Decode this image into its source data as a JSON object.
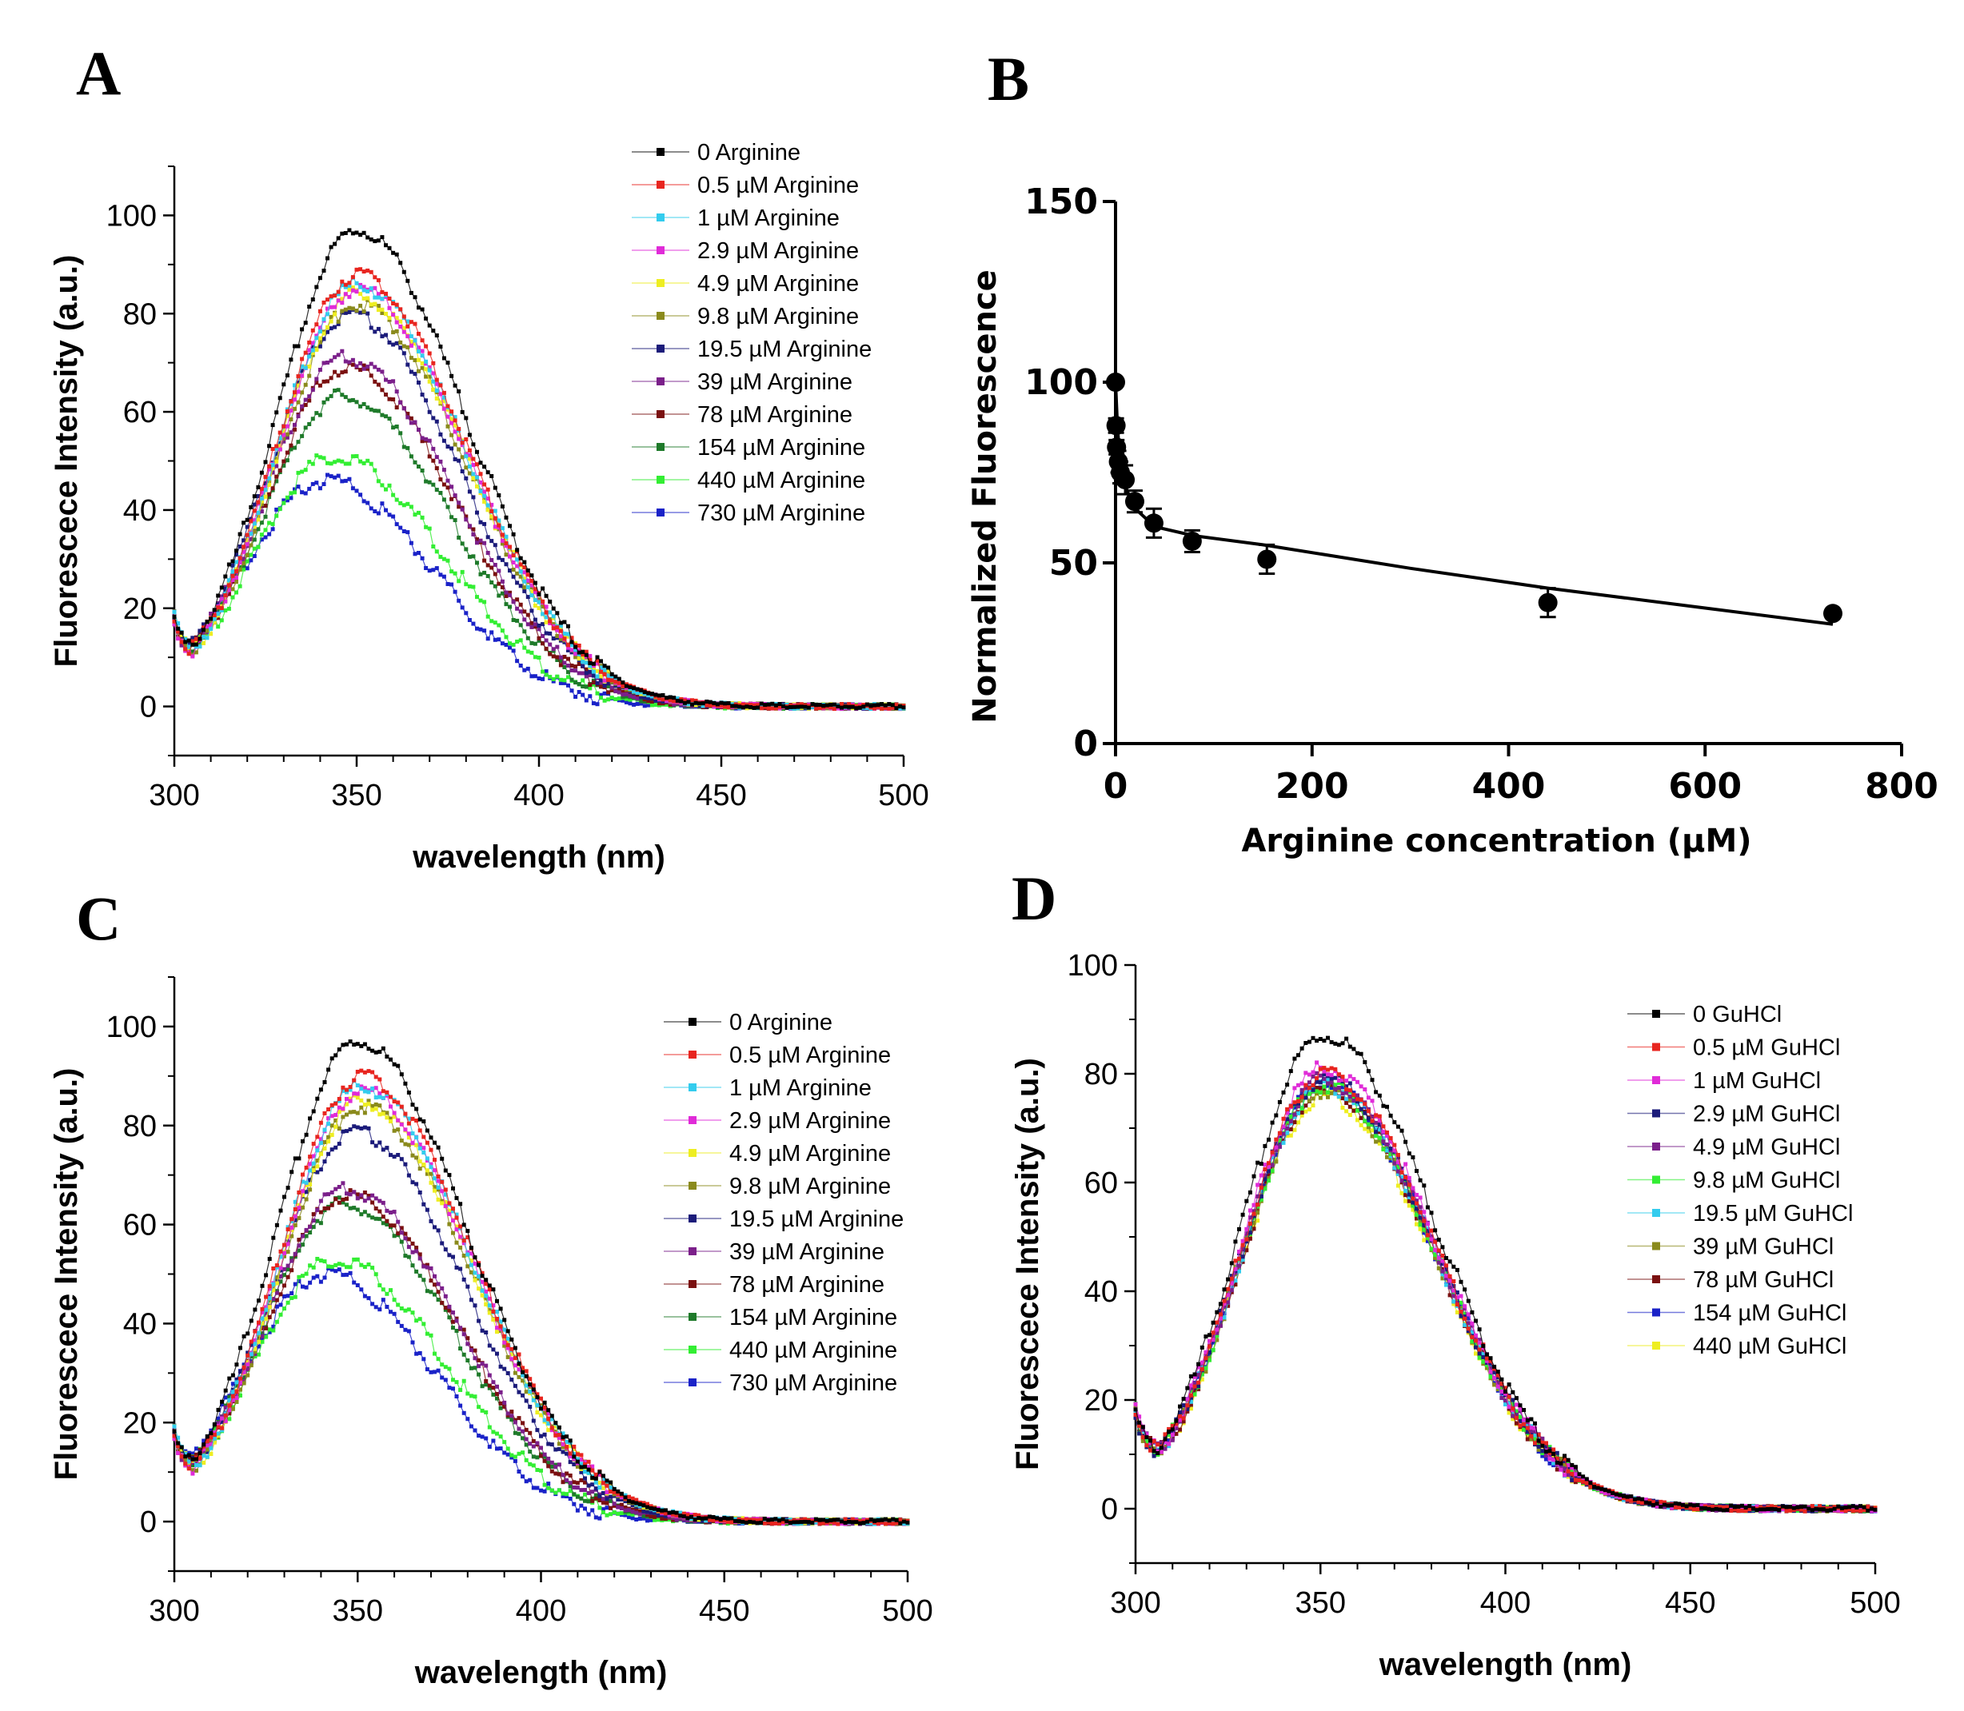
{
  "chart_data": [
    {
      "panel": "A",
      "type": "scatter",
      "xlabel": "wavelength (nm)",
      "ylabel": "Fluorescece Intensity (a.u.)",
      "xlim": [
        300,
        500
      ],
      "ylim": [
        -10,
        110
      ],
      "xticks": [
        300,
        350,
        400,
        450,
        500
      ],
      "yticks": [
        0,
        20,
        40,
        60,
        80,
        100
      ],
      "legend_position": "top-right",
      "series": [
        {
          "name": "0         Arginine",
          "color": "#000000",
          "peak": 97,
          "peak_nm": 350
        },
        {
          "name": "0.5  µM Arginine",
          "color": "#e8251f",
          "peak": 88,
          "peak_nm": 350
        },
        {
          "name": "1    µM Arginine",
          "color": "#33ccee",
          "peak": 86,
          "peak_nm": 350
        },
        {
          "name": "2.9  µM Arginine",
          "color": "#e02bd8",
          "peak": 85,
          "peak_nm": 350
        },
        {
          "name": "4.9  µM Arginine",
          "color": "#eeee22",
          "peak": 84,
          "peak_nm": 350
        },
        {
          "name": "9.8  µM Arginine",
          "color": "#8a8a1c",
          "peak": 82,
          "peak_nm": 350
        },
        {
          "name": "19.5 µM Arginine",
          "color": "#1b1b7a",
          "peak": 80,
          "peak_nm": 348
        },
        {
          "name": "39   µM Arginine",
          "color": "#7b1f8a",
          "peak": 71,
          "peak_nm": 347
        },
        {
          "name": "78   µM Arginine",
          "color": "#7a1010",
          "peak": 69,
          "peak_nm": 347
        },
        {
          "name": "154  µM Arginine",
          "color": "#1e7a2a",
          "peak": 63,
          "peak_nm": 346
        },
        {
          "name": "440  µM Arginine",
          "color": "#33ee33",
          "peak": 51,
          "peak_nm": 344
        },
        {
          "name": "730  µM Arginine",
          "color": "#1a22c8",
          "peak": 46,
          "peak_nm": 341
        }
      ]
    },
    {
      "panel": "B",
      "type": "scatter",
      "xlabel": "Arginine concentration (µM)",
      "ylabel": "Normalized Fluorescence",
      "xlim": [
        0,
        800
      ],
      "ylim": [
        0,
        150
      ],
      "xticks": [
        0,
        200,
        400,
        600,
        800
      ],
      "yticks": [
        0,
        50,
        100,
        150
      ],
      "points": [
        {
          "x": 0,
          "y": 100,
          "err": 0
        },
        {
          "x": 0.5,
          "y": 88,
          "err": 2
        },
        {
          "x": 1,
          "y": 82,
          "err": 2
        },
        {
          "x": 2.9,
          "y": 78,
          "err": 3
        },
        {
          "x": 4.9,
          "y": 75,
          "err": 3
        },
        {
          "x": 9.8,
          "y": 73,
          "err": 4
        },
        {
          "x": 19.5,
          "y": 67,
          "err": 3
        },
        {
          "x": 39,
          "y": 61,
          "err": 4
        },
        {
          "x": 78,
          "y": 56,
          "err": 3
        },
        {
          "x": 154,
          "y": 51,
          "err": 4
        },
        {
          "x": 440,
          "y": 39,
          "err": 4
        },
        {
          "x": 730,
          "y": 36,
          "err": 1
        }
      ],
      "fit_line": {
        "x": [
          0,
          2,
          5,
          10,
          20,
          40,
          80,
          150,
          300,
          440,
          600,
          730
        ],
        "y": [
          100,
          87,
          78,
          71,
          65,
          60,
          57.5,
          55,
          48.5,
          43,
          37.5,
          33
        ]
      }
    },
    {
      "panel": "C",
      "type": "scatter",
      "xlabel": "wavelength (nm)",
      "ylabel": "Fluorescece Intensity (a.u.)",
      "xlim": [
        300,
        500
      ],
      "ylim": [
        -10,
        110
      ],
      "xticks": [
        300,
        350,
        400,
        450,
        500
      ],
      "yticks": [
        0,
        20,
        40,
        60,
        80,
        100
      ],
      "legend_position": "top-right",
      "series": [
        {
          "name": "0         Arginine",
          "color": "#000000",
          "peak": 97,
          "peak_nm": 350
        },
        {
          "name": "0.5  µM Arginine",
          "color": "#e8251f",
          "peak": 90,
          "peak_nm": 351
        },
        {
          "name": "1    µM Arginine",
          "color": "#33ccee",
          "peak": 88,
          "peak_nm": 351
        },
        {
          "name": "2.9  µM Arginine",
          "color": "#e02bd8",
          "peak": 87,
          "peak_nm": 351
        },
        {
          "name": "4.9  µM Arginine",
          "color": "#eeee22",
          "peak": 85,
          "peak_nm": 351
        },
        {
          "name": "9.8  µM Arginine",
          "color": "#8a8a1c",
          "peak": 84,
          "peak_nm": 351
        },
        {
          "name": "19.5 µM Arginine",
          "color": "#1b1b7a",
          "peak": 79,
          "peak_nm": 349
        },
        {
          "name": "39   µM Arginine",
          "color": "#7b1f8a",
          "peak": 67,
          "peak_nm": 347
        },
        {
          "name": "78   µM Arginine",
          "color": "#7a1010",
          "peak": 66,
          "peak_nm": 347
        },
        {
          "name": "154  µM Arginine",
          "color": "#1e7a2a",
          "peak": 64,
          "peak_nm": 346
        },
        {
          "name": "440  µM Arginine",
          "color": "#33ee33",
          "peak": 53,
          "peak_nm": 344
        },
        {
          "name": "730  µM Arginine",
          "color": "#1a22c8",
          "peak": 50,
          "peak_nm": 341
        }
      ]
    },
    {
      "panel": "D",
      "type": "scatter",
      "xlabel": "wavelength (nm)",
      "ylabel": "Fluorescece Intensity (a.u.)",
      "xlim": [
        300,
        500
      ],
      "ylim": [
        -10,
        100
      ],
      "xticks": [
        300,
        350,
        400,
        450,
        500
      ],
      "yticks": [
        0,
        20,
        40,
        60,
        80,
        100
      ],
      "legend_position": "top-right",
      "series": [
        {
          "name": "0         GuHCl",
          "color": "#000000",
          "peak": 87,
          "peak_nm": 351
        },
        {
          "name": "0.5 µM GuHCl",
          "color": "#e8251f",
          "peak": 80,
          "peak_nm": 351
        },
        {
          "name": " 1 µM   GuHCl",
          "color": "#e02bd8",
          "peak": 81,
          "peak_nm": 351
        },
        {
          "name": " 2.9 µM GuHCl",
          "color": "#1b1b7a",
          "peak": 79,
          "peak_nm": 351
        },
        {
          "name": "4.9 µM GuHCl",
          "color": "#7b1f8a",
          "peak": 79,
          "peak_nm": 351
        },
        {
          "name": "9.8 µM GuHCl",
          "color": "#33ee33",
          "peak": 78,
          "peak_nm": 351
        },
        {
          "name": "19.5 µM GuHCl",
          "color": "#33ccee",
          "peak": 78,
          "peak_nm": 351
        },
        {
          "name": " 39 µM GuHCl",
          "color": "#8a8a1c",
          "peak": 77,
          "peak_nm": 351
        },
        {
          "name": "78 µM GuHCl",
          "color": "#7a1010",
          "peak": 77,
          "peak_nm": 351
        },
        {
          "name": "154 µM GuHCl",
          "color": "#1a22c8",
          "peak": 78,
          "peak_nm": 351
        },
        {
          "name": "440 µM GuHCl",
          "color": "#eeee22",
          "peak": 76,
          "peak_nm": 351
        }
      ]
    }
  ]
}
